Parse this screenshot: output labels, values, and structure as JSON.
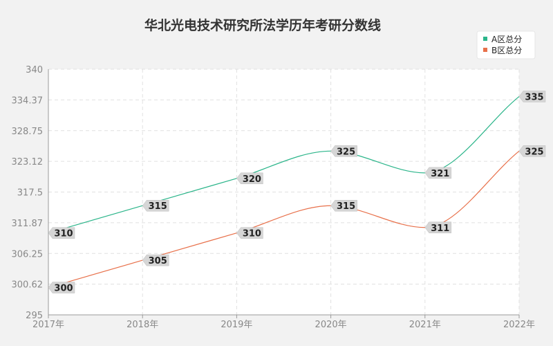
{
  "chart_data": {
    "type": "line",
    "title": "华北光电技术研究所法学历年考研分数线",
    "categories": [
      "2017年",
      "2018年",
      "2019年",
      "2020年",
      "2021年",
      "2022年"
    ],
    "series": [
      {
        "name": "A区总分",
        "color": "#2bb58a",
        "values": [
          310,
          315,
          320,
          325,
          321,
          335
        ]
      },
      {
        "name": "B区总分",
        "color": "#e8704a",
        "values": [
          300,
          305,
          310,
          315,
          311,
          325
        ]
      }
    ],
    "ylim": [
      295,
      340
    ],
    "yticks": [
      "340",
      "334.37",
      "328.75",
      "323.12",
      "317.5",
      "311.87",
      "306.25",
      "300.62",
      "295"
    ],
    "grid": true,
    "legend_position": "top-right",
    "smooth": true
  }
}
